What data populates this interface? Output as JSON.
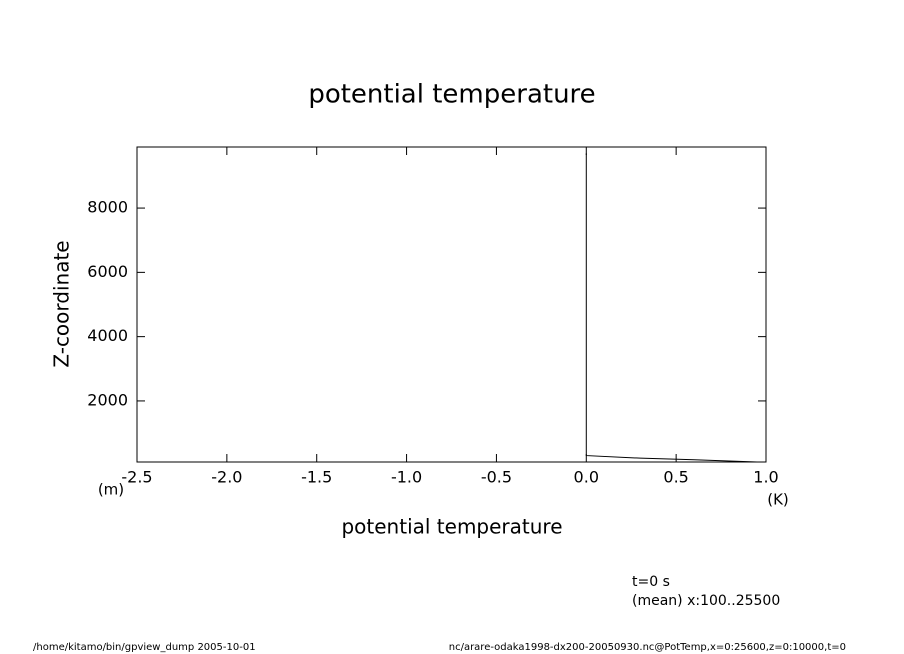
{
  "chart_data": {
    "type": "line",
    "title": "potential temperature",
    "x_label": "potential temperature",
    "y_label": "Z-coordinate",
    "x_unit": "(K)",
    "y_unit": "(m)",
    "annotations": [
      "t=0 s",
      "(mean) x:100..25500"
    ],
    "footer_left": "/home/kitamo/bin/gpview_dump  2005-10-01",
    "footer_right": "nc/arare-odaka1998-dx200-20050930.nc@PotTemp,x=0:25600,z=0:10000,t=0",
    "y": [
      9700,
      300,
      220,
      170,
      100
    ],
    "series": [
      {
        "color": "#000000",
        "values": [
          0,
          0,
          0.3,
          0.6,
          0.95
        ]
      }
    ],
    "xlim": [
      -2.5,
      1.0
    ],
    "xticks": [
      {
        "value": -2.5,
        "label": "-2.5"
      },
      {
        "value": -2.0,
        "label": "-2.0"
      },
      -1.5,
      {
        "value": -1.0,
        "label": "-1.0"
      },
      -0.5,
      {
        "value": 0.0,
        "label": "0.0"
      },
      0.5,
      {
        "value": 1.0,
        "label": "1.0"
      }
    ],
    "ylim": [
      100,
      9900
    ],
    "yticks": [
      2000,
      4000,
      6000,
      8000
    ],
    "grid": false
  }
}
